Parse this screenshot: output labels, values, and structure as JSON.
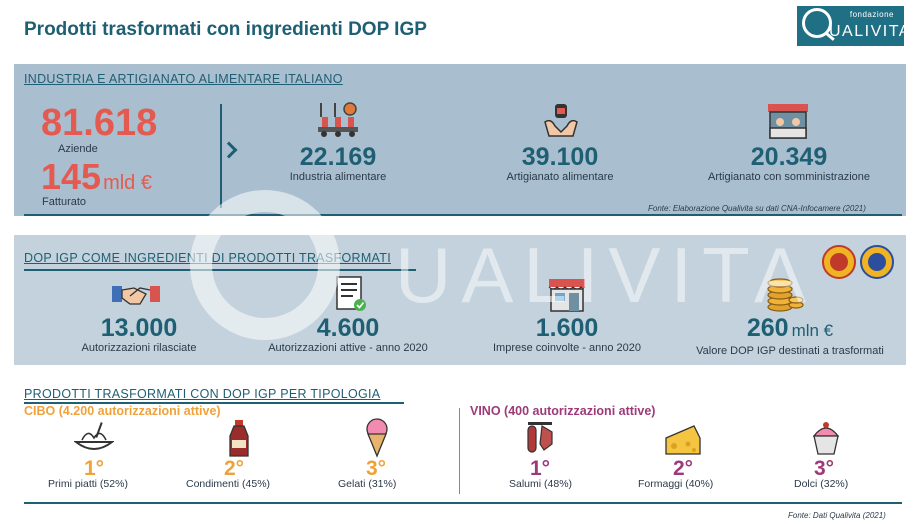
{
  "title": "Prodotti trasformati con ingredienti DOP IGP",
  "logo": {
    "top": "fondazione",
    "name": "UALIVITA"
  },
  "watermark": "UALIVITA",
  "section1": {
    "title": "INDUSTRIA E ARTIGIANATO ALIMENTARE ITALIANO",
    "aziende_value": "81.618",
    "aziende_label": "Aziende",
    "fatturato_value": "145",
    "fatturato_unit": "mld €",
    "fatturato_label": "Fatturato",
    "stats": [
      {
        "value": "22.169",
        "label": "Industria alimentare",
        "icon": "factory-icon"
      },
      {
        "value": "39.100",
        "label": "Artigianato alimentare",
        "icon": "artisan-hands-icon"
      },
      {
        "value": "20.349",
        "label": "Artigianato con somministrazione",
        "icon": "shop-counter-icon"
      }
    ],
    "source": "Fonte: Elaborazione Qualivita su dati CNA-Infocamere (2021)"
  },
  "section2": {
    "title": "DOP IGP COME INGREDIENTI DI PRODOTTI TRASFORMATI",
    "stats": [
      {
        "value": "13.000",
        "unit": "",
        "label": "Autorizzazioni rilasciate",
        "icon": "handshake-icon"
      },
      {
        "value": "4.600",
        "unit": "",
        "label": "Autorizzazioni attive - anno 2020",
        "icon": "certificate-icon"
      },
      {
        "value": "1.600",
        "unit": "",
        "label": "Imprese coinvolte - anno 2020",
        "icon": "store-icon"
      },
      {
        "value": "260",
        "unit": "mln €",
        "label": "Valore DOP IGP destinati a trasformati",
        "icon": "coins-icon"
      }
    ]
  },
  "section3": {
    "title": "PRODOTTI TRASFORMATI CON DOP IGP PER TIPOLOGIA",
    "cibo": {
      "heading": "CIBO (4.200 autorizzazioni attive)",
      "items": [
        {
          "rank": "1°",
          "label": "Primi piatti (52%)",
          "icon": "pasta-icon"
        },
        {
          "rank": "2°",
          "label": "Condimenti (45%)",
          "icon": "condiment-bottle-icon"
        },
        {
          "rank": "3°",
          "label": "Gelati (31%)",
          "icon": "ice-cream-icon"
        }
      ]
    },
    "vino": {
      "heading": "VINO (400 autorizzazioni attive)",
      "items": [
        {
          "rank": "1°",
          "label": "Salumi (48%)",
          "icon": "salami-icon"
        },
        {
          "rank": "2°",
          "label": "Formaggi (40%)",
          "icon": "cheese-icon"
        },
        {
          "rank": "3°",
          "label": "Dolci (32%)",
          "icon": "cupcake-icon"
        }
      ]
    },
    "source": "Fonte: Dati Qualivita (2021)"
  },
  "colors": {
    "accent": "#1f5f73",
    "red": "#e55a50",
    "cibo": "#f0a23a",
    "vino": "#9c3a7a",
    "panel1": "#a9bfcf",
    "panel2": "#c3d2dc"
  }
}
